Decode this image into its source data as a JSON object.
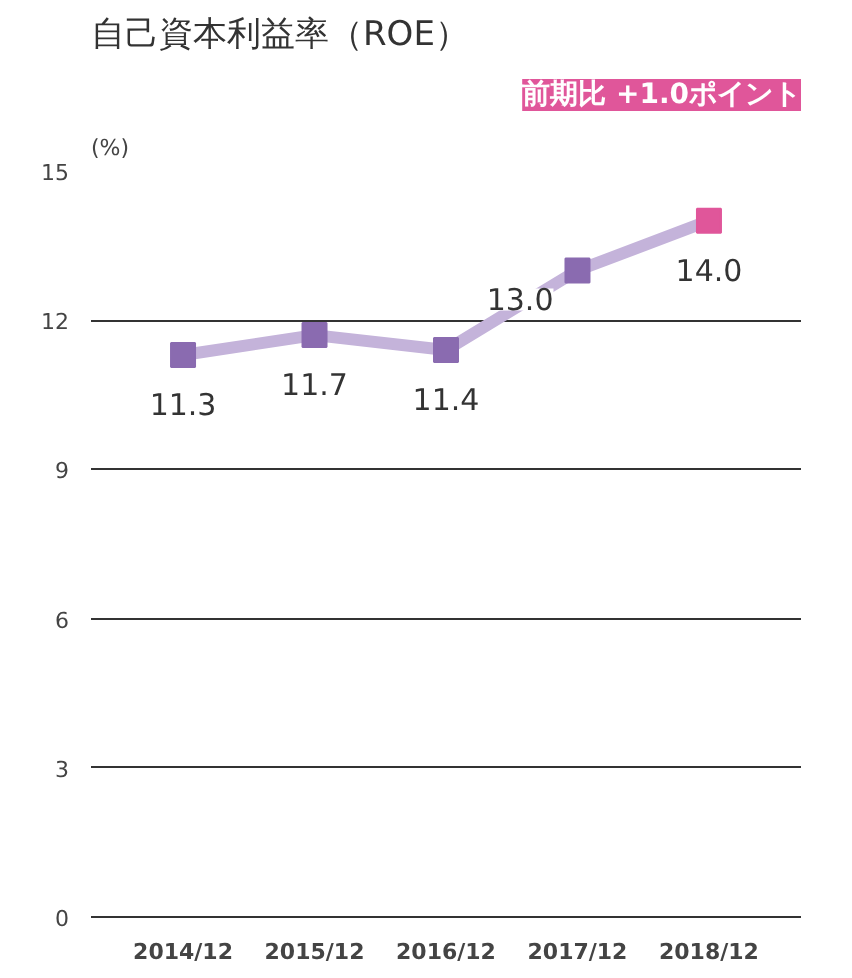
{
  "chart_data": {
    "type": "line",
    "title": "自己資本利益率（ROE）",
    "ylabel": "(%)",
    "categories": [
      "2014/12",
      "2015/12",
      "2016/12",
      "2017/12",
      "2018/12"
    ],
    "series": [
      {
        "color": "#c4b3da",
        "colors": [
          "#8a6bb0",
          "#8a6bb0",
          "#8a6bb0",
          "#8a6bb0",
          "#e0569a"
        ],
        "values": [
          11.3,
          11.7,
          11.4,
          13.0,
          14.0
        ],
        "value_labels": [
          "11.3",
          "11.7",
          "11.4",
          "13.0",
          "14.0"
        ]
      }
    ],
    "ylim": [
      0,
      15
    ],
    "yticks": [
      0,
      3,
      6,
      9,
      12,
      15
    ],
    "grid": "y",
    "marker": "square",
    "line_style": "solid",
    "annotations": [
      "前期比 +1.0ポイント"
    ]
  }
}
